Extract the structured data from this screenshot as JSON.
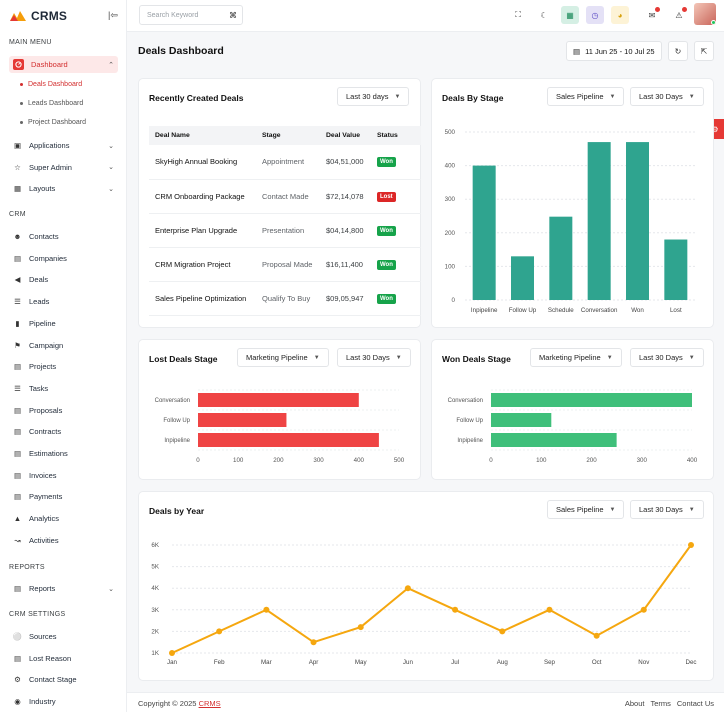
{
  "app": {
    "name": "CRMS"
  },
  "sidebar": {
    "sections": {
      "main_menu": "MAIN MENU",
      "crm": "CRM",
      "reports": "REPORTS",
      "crm_settings": "CRM SETTINGS"
    },
    "dashboard": {
      "label": "Dashboard",
      "icon": "dashboard-icon",
      "sub": [
        "Deals Dashboard",
        "Leads Dashboard",
        "Project Dashboard"
      ]
    },
    "main_items": [
      {
        "label": "Applications",
        "icon": "applications-icon"
      },
      {
        "label": "Super Admin",
        "icon": "super-admin-icon"
      },
      {
        "label": "Layouts",
        "icon": "layouts-icon"
      }
    ],
    "crm_items": [
      {
        "label": "Contacts",
        "icon": "contacts-icon"
      },
      {
        "label": "Companies",
        "icon": "companies-icon"
      },
      {
        "label": "Deals",
        "icon": "deals-icon"
      },
      {
        "label": "Leads",
        "icon": "leads-icon"
      },
      {
        "label": "Pipeline",
        "icon": "pipeline-icon"
      },
      {
        "label": "Campaign",
        "icon": "campaign-icon"
      },
      {
        "label": "Projects",
        "icon": "projects-icon"
      },
      {
        "label": "Tasks",
        "icon": "tasks-icon"
      },
      {
        "label": "Proposals",
        "icon": "proposals-icon"
      },
      {
        "label": "Contracts",
        "icon": "contracts-icon"
      },
      {
        "label": "Estimations",
        "icon": "estimations-icon"
      },
      {
        "label": "Invoices",
        "icon": "invoices-icon"
      },
      {
        "label": "Payments",
        "icon": "payments-icon"
      },
      {
        "label": "Analytics",
        "icon": "analytics-icon"
      },
      {
        "label": "Activities",
        "icon": "activities-icon"
      }
    ],
    "report_items": [
      {
        "label": "Reports",
        "icon": "reports-icon"
      }
    ],
    "settings_items": [
      {
        "label": "Sources",
        "icon": "sources-icon"
      },
      {
        "label": "Lost Reason",
        "icon": "lost-reason-icon"
      },
      {
        "label": "Contact Stage",
        "icon": "contact-stage-icon"
      },
      {
        "label": "Industry",
        "icon": "industry-icon"
      }
    ]
  },
  "topbar": {
    "search_placeholder": "Search Keyword",
    "search_shortcut": "⌘"
  },
  "page": {
    "title": "Deals Dashboard",
    "date_range": "11 Jun 25 - 10 Jul 25"
  },
  "recent_deals": {
    "title": "Recently Created Deals",
    "filter": "Last 30 days",
    "columns": [
      "Deal Name",
      "Stage",
      "Deal Value",
      "Status"
    ],
    "rows": [
      {
        "name": "SkyHigh Annual Booking",
        "stage": "Appointment",
        "value": "$04,51,000",
        "status": "Won"
      },
      {
        "name": "CRM Onboarding Package",
        "stage": "Contact Made",
        "value": "$72,14,078",
        "status": "Lost"
      },
      {
        "name": "Enterprise Plan Upgrade",
        "stage": "Presentation",
        "value": "$04,14,800",
        "status": "Won"
      },
      {
        "name": "CRM Migration Project",
        "stage": "Proposal Made",
        "value": "$16,11,400",
        "status": "Won"
      },
      {
        "name": "Sales Pipeline Optimization",
        "stage": "Qualify To Buy",
        "value": "$09,05,947",
        "status": "Won"
      }
    ]
  },
  "deals_by_stage": {
    "title": "Deals By Stage",
    "filter_pipeline": "Sales Pipeline",
    "filter_period": "Last 30 Days"
  },
  "lost_deals": {
    "title": "Lost Deals Stage",
    "filter_pipeline": "Marketing Pipeline",
    "filter_period": "Last 30 Days"
  },
  "won_deals": {
    "title": "Won Deals Stage",
    "filter_pipeline": "Marketing Pipeline",
    "filter_period": "Last 30 Days"
  },
  "deals_by_year": {
    "title": "Deals by Year",
    "filter_pipeline": "Sales Pipeline",
    "filter_period": "Last 30 Days"
  },
  "colors": {
    "accent": "#e53935",
    "teal": "#2fa48f",
    "lost": "#ef4444",
    "won": "#3fbf7a",
    "line": "#f5a70f"
  },
  "chart_data": [
    {
      "type": "bar",
      "title": "Deals By Stage",
      "categories": [
        "Inpipeline",
        "Follow Up",
        "Schedule",
        "Conversation",
        "Won",
        "Lost"
      ],
      "values": [
        400,
        130,
        248,
        470,
        470,
        180
      ],
      "ylim": [
        0,
        500
      ],
      "yticks": [
        0,
        100,
        200,
        300,
        400,
        500
      ]
    },
    {
      "type": "bar",
      "orientation": "horizontal",
      "title": "Lost Deals Stage",
      "categories": [
        "Conversation",
        "Follow Up",
        "Inpipeline"
      ],
      "values": [
        400,
        220,
        450
      ],
      "xlim": [
        0,
        500
      ],
      "xticks": [
        0,
        100,
        200,
        300,
        400,
        500
      ]
    },
    {
      "type": "bar",
      "orientation": "horizontal",
      "title": "Won Deals Stage",
      "categories": [
        "Conversation",
        "Follow Up",
        "Inpipeline"
      ],
      "values": [
        400,
        120,
        250
      ],
      "xlim": [
        0,
        400
      ],
      "xticks": [
        0,
        100,
        200,
        300,
        400
      ]
    },
    {
      "type": "line",
      "title": "Deals by Year",
      "categories": [
        "Jan",
        "Feb",
        "Mar",
        "Apr",
        "May",
        "Jun",
        "Jul",
        "Aug",
        "Sep",
        "Oct",
        "Nov",
        "Dec"
      ],
      "values": [
        1000,
        2000,
        3000,
        1500,
        2200,
        4000,
        3000,
        2000,
        3000,
        1800,
        3000,
        6000
      ],
      "ylim": [
        1000,
        6000
      ],
      "yticks": [
        "1K",
        "2K",
        "3K",
        "4K",
        "5K",
        "6K"
      ]
    }
  ],
  "footer": {
    "copyright": "Copyright © 2025",
    "brand": "CRMS",
    "links": [
      "About",
      "Terms",
      "Contact Us"
    ]
  }
}
